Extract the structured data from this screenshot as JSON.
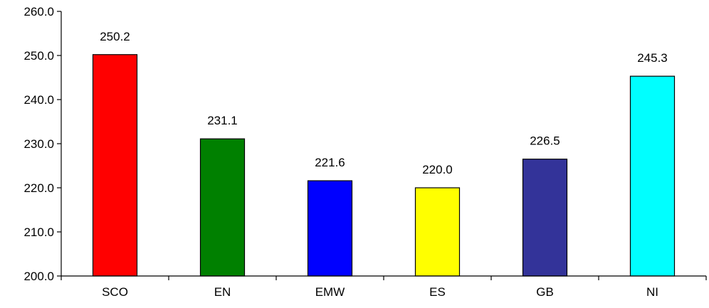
{
  "chart_data": {
    "type": "bar",
    "title": "",
    "xlabel": "",
    "ylabel": "",
    "categories": [
      "SCO",
      "EN",
      "EMW",
      "ES",
      "GB",
      "NI"
    ],
    "values": [
      250.2,
      231.1,
      221.6,
      220.0,
      226.5,
      245.3
    ],
    "value_labels": [
      "250.2",
      "231.1",
      "221.6",
      "220.0",
      "226.5",
      "245.3"
    ],
    "colors": [
      "#ff0000",
      "#008000",
      "#0000ff",
      "#ffff00",
      "#333399",
      "#00ffff"
    ],
    "ylim": [
      200,
      260
    ],
    "yticks": [
      "200.0",
      "210.0",
      "220.0",
      "230.0",
      "240.0",
      "250.0",
      "260.0"
    ],
    "grid": false,
    "legend": "none"
  }
}
